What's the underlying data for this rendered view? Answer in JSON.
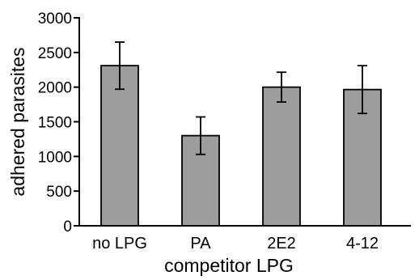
{
  "chart_data": {
    "type": "bar",
    "title": "",
    "xlabel": "competitor LPG",
    "ylabel": "adhered parasites",
    "categories": [
      "no LPG",
      "PA",
      "2E2",
      "4-12"
    ],
    "series": [
      {
        "values": [
          2310,
          1300,
          2000,
          1965
        ],
        "error": [
          340,
          270,
          215,
          345
        ]
      }
    ],
    "ylim": [
      0,
      3000
    ],
    "yticks": [
      0,
      500,
      1000,
      1500,
      2000,
      2500,
      3000
    ],
    "grid": false,
    "bar_color": "#9d9d9d"
  }
}
